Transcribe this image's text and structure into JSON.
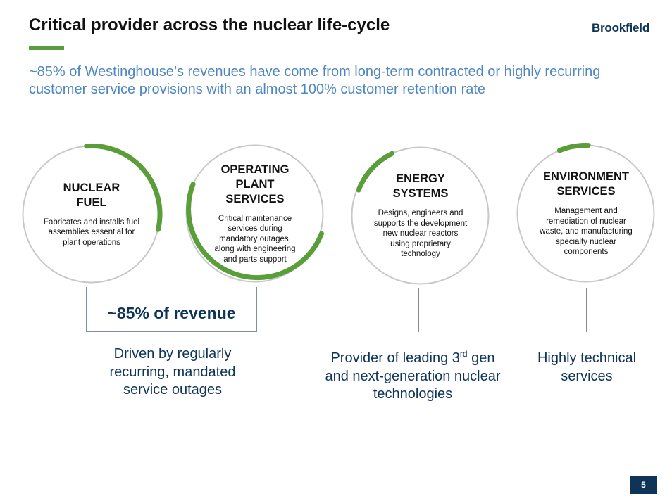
{
  "header": {
    "title": "Critical provider across the nuclear life-cycle",
    "logo": "Brookfield"
  },
  "subtitle": "~85% of Westinghouse’s revenues have come from long-term contracted or highly recurring customer service provisions with an almost 100% customer retention rate",
  "colors": {
    "accent_green": "#5a9e3a",
    "navy": "#0e3458",
    "subtitle_blue": "#4e86c2",
    "circle_gray": "#c8c8c8"
  },
  "segments": [
    {
      "heading": "NUCLEAR FUEL",
      "description": "Fabricates and installs fuel assemblies essential for plant operations"
    },
    {
      "heading": "OPERATING PLANT SERVICES",
      "description": "Critical maintenance services during mandatory outages, along with engineering and parts support"
    },
    {
      "heading": "ENERGY SYSTEMS",
      "description": "Designs, engineers and supports the development new nuclear reactors using proprietary technology"
    },
    {
      "heading": "ENVIRONMENT SERVICES",
      "description": "Management and remediation of nuclear waste, and manufacturing specialty nuclear components"
    }
  ],
  "revenue_label": "~85% of revenue",
  "captions": {
    "recurring": "Driven by regularly recurring, mandated service outages",
    "provider_part1": "Provider of leading 3",
    "provider_sup": "rd",
    "provider_part2": " gen and next-generation nuclear technologies",
    "technical": "Highly technical services"
  },
  "page_number": "5"
}
